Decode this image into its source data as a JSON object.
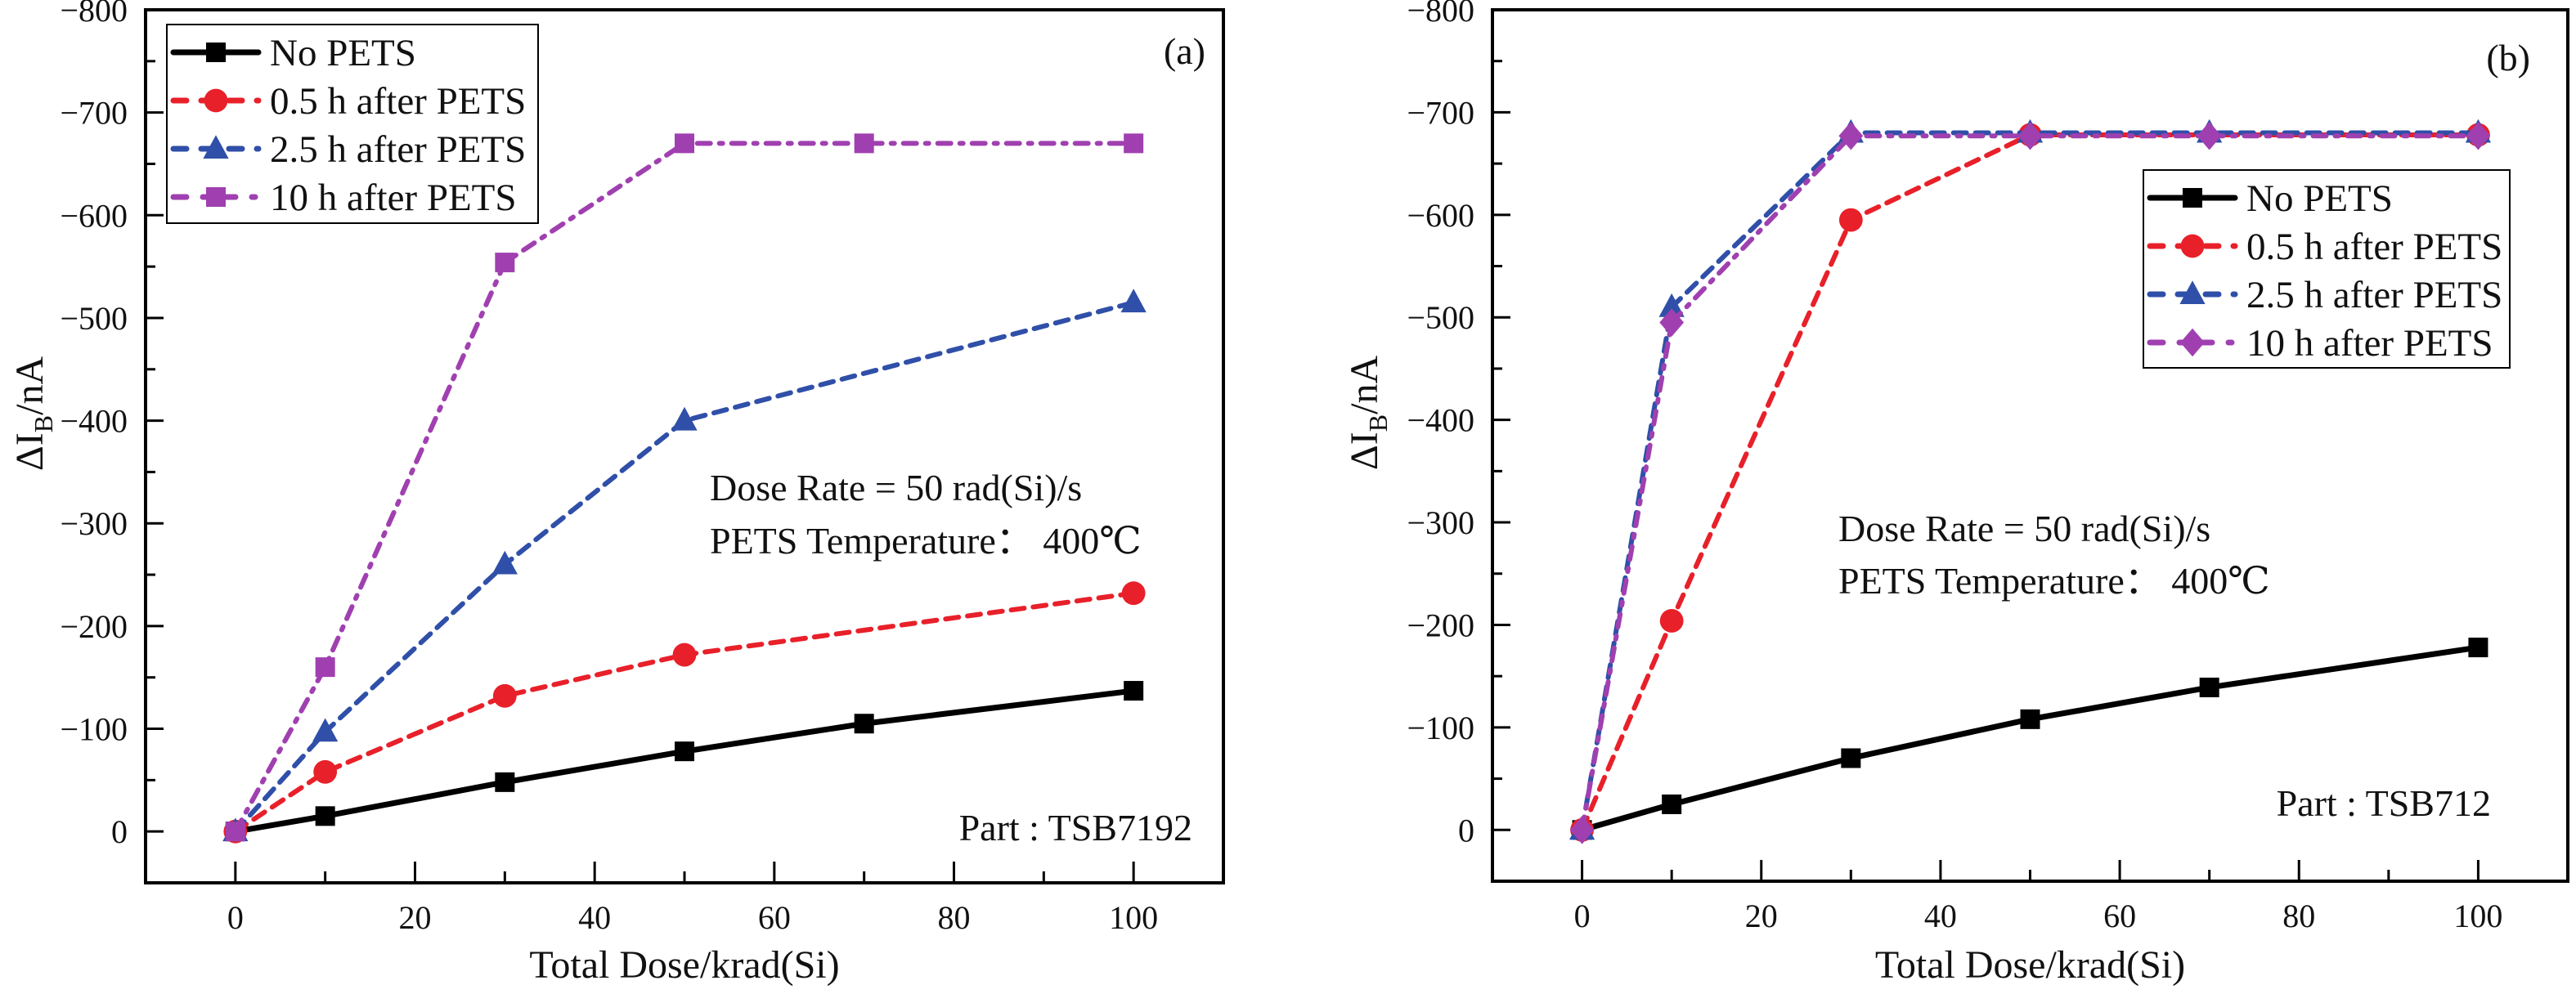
{
  "chart_data": [
    {
      "type": "line",
      "panel_label": "(a)",
      "xlabel": "Total Dose/krad(Si)",
      "ylabel": {
        "prefix": "ΔI",
        "sub": "B",
        "suffix": "/nA"
      },
      "xlim": [
        -10,
        110
      ],
      "ylim": [
        50,
        -800
      ],
      "xticks": [
        0,
        20,
        40,
        60,
        80,
        100
      ],
      "yticks": [
        0,
        -100,
        -200,
        -300,
        -400,
        -500,
        -600,
        -700,
        -800
      ],
      "ytick_labels": [
        "0",
        "−100",
        "−200",
        "−300",
        "−400",
        "−500",
        "−600",
        "−700",
        "−800"
      ],
      "annotations": [
        "Dose Rate = 50 rad(Si)/s",
        "PETS Temperature：  400℃",
        "Part : TSB7192"
      ],
      "legend_position": "top-left",
      "series": [
        {
          "name": "No PETS",
          "color": "#000000",
          "marker": "square",
          "dash": "solid",
          "x": [
            0,
            10,
            30,
            50,
            70,
            100
          ],
          "y": [
            0,
            -15,
            -48,
            -78,
            -105,
            -137
          ]
        },
        {
          "name": "0.5 h after PETS",
          "color": "#e8202a",
          "marker": "circle",
          "dash": "dash",
          "x": [
            0,
            10,
            30,
            50,
            100
          ],
          "y": [
            0,
            -58,
            -132,
            -172,
            -232
          ]
        },
        {
          "name": "2.5 h after PETS",
          "color": "#2f4fa8",
          "marker": "triangle",
          "dash": "dash",
          "x": [
            0,
            10,
            30,
            50,
            100
          ],
          "y": [
            0,
            -97,
            -260,
            -400,
            -515
          ]
        },
        {
          "name": "10 h after PETS",
          "color": "#a040b0",
          "marker": "square",
          "dash": "dashdot",
          "x": [
            0,
            10,
            30,
            50,
            70,
            100
          ],
          "y": [
            0,
            -160,
            -554,
            -670,
            -670,
            -670
          ]
        }
      ]
    },
    {
      "type": "line",
      "panel_label": "(b)",
      "xlabel": "Total Dose/krad(Si)",
      "ylabel": {
        "prefix": "ΔI",
        "sub": "B",
        "suffix": "/nA"
      },
      "xlim": [
        -10,
        110
      ],
      "ylim": [
        50,
        -800
      ],
      "xticks": [
        0,
        20,
        40,
        60,
        80,
        100
      ],
      "yticks": [
        0,
        -100,
        -200,
        -300,
        -400,
        -500,
        -600,
        -700,
        -800
      ],
      "ytick_labels": [
        "0",
        "−100",
        "−200",
        "−300",
        "−400",
        "−500",
        "−600",
        "−700",
        "−800"
      ],
      "annotations": [
        "Dose Rate = 50 rad(Si)/s",
        "PETS Temperature：  400℃",
        "Part : TSB712"
      ],
      "legend_position": "top-right",
      "series": [
        {
          "name": "No PETS",
          "color": "#000000",
          "marker": "square",
          "dash": "solid",
          "x": [
            0,
            10,
            30,
            50,
            70,
            100
          ],
          "y": [
            0,
            -25,
            -70,
            -108,
            -139,
            -178
          ]
        },
        {
          "name": "0.5 h after PETS",
          "color": "#e8202a",
          "marker": "circle",
          "dash": "dash",
          "x": [
            0,
            10,
            30,
            50,
            100
          ],
          "y": [
            0,
            -204,
            -595,
            -678,
            -678
          ]
        },
        {
          "name": "2.5 h after PETS",
          "color": "#2f4fa8",
          "marker": "triangle",
          "dash": "dash",
          "x": [
            0,
            10,
            30,
            50,
            70,
            100
          ],
          "y": [
            0,
            -510,
            -680,
            -680,
            -680,
            -680
          ]
        },
        {
          "name": "10 h after PETS",
          "color": "#a040b0",
          "marker": "diamond",
          "dash": "dashdot",
          "x": [
            0,
            10,
            30,
            50,
            70,
            100
          ],
          "y": [
            0,
            -495,
            -677,
            -677,
            -677,
            -677
          ]
        }
      ]
    }
  ]
}
